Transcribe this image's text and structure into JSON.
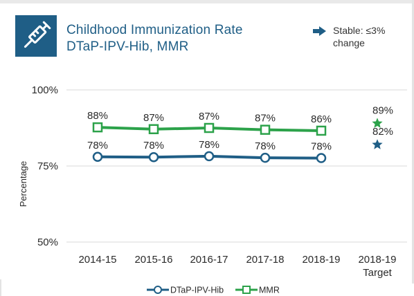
{
  "header": {
    "title_line1": "Childhood Immunization Rate",
    "title_line2": "DTaP-IPV-Hib, MMR",
    "logo_icon": "syringe-icon",
    "note_icon": "arrow-right-icon",
    "note_text": "Stable: ≤3% change"
  },
  "colors": {
    "dtap": "#1f5e86",
    "mmr": "#2ca24a",
    "grid": "#d9d9d9"
  },
  "chart_data": {
    "type": "line",
    "title": "Childhood Immunization Rate DTaP-IPV-Hib, MMR",
    "ylabel": "Percentage",
    "xlabel": "",
    "ylim": [
      50,
      100
    ],
    "yticks": [
      50,
      75,
      100
    ],
    "ytick_labels": [
      "50%",
      "75%",
      "100%"
    ],
    "grid": true,
    "legend_position": "bottom",
    "categories": [
      "2014-15",
      "2015-16",
      "2016-17",
      "2017-18",
      "2018-19"
    ],
    "series": [
      {
        "name": "DTaP-IPV-Hib",
        "values": [
          78,
          78,
          78,
          78,
          78
        ],
        "plot_values": [
          78.0,
          77.9,
          78.2,
          77.7,
          77.6
        ],
        "labels": [
          "78%",
          "78%",
          "78%",
          "78%",
          "78%"
        ],
        "color": "#1f5e86",
        "marker": "circle"
      },
      {
        "name": "MMR",
        "values": [
          88,
          87,
          87,
          87,
          86
        ],
        "plot_values": [
          87.7,
          87.1,
          87.5,
          86.9,
          86.6
        ],
        "labels": [
          "88%",
          "87%",
          "87%",
          "87%",
          "86%"
        ],
        "color": "#2ca24a",
        "marker": "square"
      }
    ],
    "target": {
      "category_line1": "2018-19",
      "category_line2": "Target",
      "points": [
        {
          "series": "MMR",
          "value": 89,
          "label": "89%",
          "color": "#2ca24a",
          "marker": "star"
        },
        {
          "series": "DTaP-IPV-Hib",
          "value": 82,
          "label": "82%",
          "color": "#1f5e86",
          "marker": "star"
        }
      ]
    }
  }
}
